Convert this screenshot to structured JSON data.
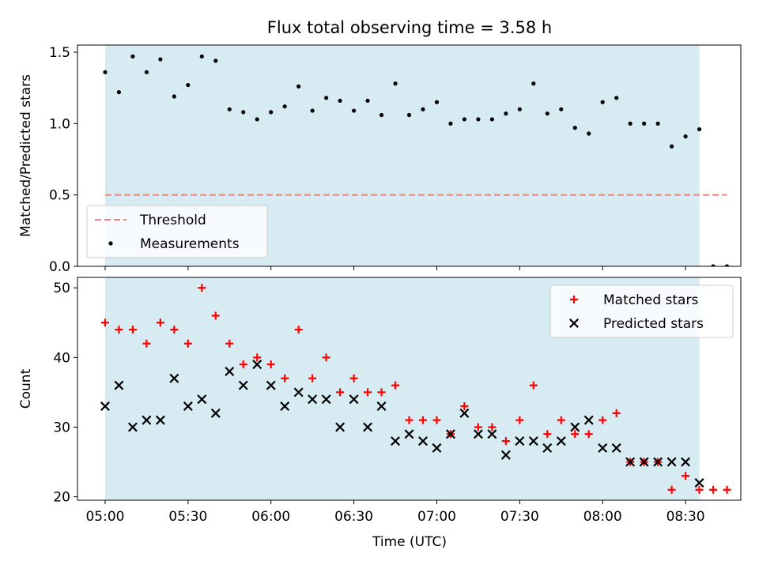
{
  "chart_data": {
    "title": "Flux total observing time = 3.58 h",
    "xlabel": "Time (UTC)",
    "x_ticks": [
      "05:00",
      "05:30",
      "06:00",
      "06:30",
      "07:00",
      "07:30",
      "08:00",
      "08:30"
    ],
    "colors": {
      "shade": "#add8e6",
      "threshold": "#f08080",
      "measurements": "#000000",
      "matched": "#ff0000",
      "predicted": "#000000"
    },
    "panels": [
      {
        "type": "scatter",
        "ylabel": "Matched/Predicted stars",
        "ylim": [
          0,
          1.55
        ],
        "y_ticks": [
          "0.0",
          "0.5",
          "1.0",
          "1.5"
        ],
        "y_tick_values": [
          0,
          0.5,
          1.0,
          1.5
        ],
        "legend": {
          "position": "lower-left",
          "entries": [
            "Threshold",
            "Measurements"
          ]
        },
        "shaded_span": {
          "start": "05:00",
          "end": "08:35"
        },
        "threshold": {
          "name": "Threshold",
          "y": 0.5,
          "x_start": "05:00",
          "x_end": "08:45"
        },
        "series": [
          {
            "name": "Measurements",
            "marker": "dot",
            "x": [
              "05:00",
              "05:05",
              "05:10",
              "05:15",
              "05:20",
              "05:25",
              "05:30",
              "05:35",
              "05:40",
              "05:45",
              "05:50",
              "05:55",
              "06:00",
              "06:05",
              "06:10",
              "06:15",
              "06:20",
              "06:25",
              "06:30",
              "06:35",
              "06:40",
              "06:45",
              "06:50",
              "06:55",
              "07:00",
              "07:05",
              "07:10",
              "07:15",
              "07:20",
              "07:25",
              "07:30",
              "07:35",
              "07:40",
              "07:45",
              "07:50",
              "07:55",
              "08:00",
              "08:05",
              "08:10",
              "08:15",
              "08:20",
              "08:25",
              "08:30",
              "08:35",
              "08:40",
              "08:45"
            ],
            "y": [
              1.36,
              1.22,
              1.47,
              1.36,
              1.45,
              1.19,
              1.27,
              1.47,
              1.44,
              1.1,
              1.08,
              1.03,
              1.08,
              1.12,
              1.26,
              1.09,
              1.18,
              1.16,
              1.09,
              1.16,
              1.06,
              1.28,
              1.06,
              1.1,
              1.15,
              1.0,
              1.03,
              1.03,
              1.03,
              1.07,
              1.1,
              1.28,
              1.07,
              1.1,
              0.97,
              0.93,
              1.15,
              1.18,
              1.0,
              1.0,
              1.0,
              0.84,
              0.91,
              0.96,
              0.0,
              0.0
            ]
          }
        ]
      },
      {
        "type": "scatter",
        "ylabel": "Count",
        "ylim": [
          19.5,
          51.5
        ],
        "y_ticks": [
          "20",
          "30",
          "40",
          "50"
        ],
        "y_tick_values": [
          20,
          30,
          40,
          50
        ],
        "legend": {
          "position": "top-right",
          "entries": [
            "Matched stars",
            "Predicted stars"
          ]
        },
        "shaded_span": {
          "start": "05:00",
          "end": "08:35"
        },
        "series": [
          {
            "name": "Matched stars",
            "marker": "plus",
            "x": [
              "05:00",
              "05:05",
              "05:10",
              "05:15",
              "05:20",
              "05:25",
              "05:30",
              "05:35",
              "05:40",
              "05:45",
              "05:50",
              "05:55",
              "06:00",
              "06:05",
              "06:10",
              "06:15",
              "06:20",
              "06:25",
              "06:30",
              "06:35",
              "06:40",
              "06:45",
              "06:50",
              "06:55",
              "07:00",
              "07:05",
              "07:10",
              "07:15",
              "07:20",
              "07:25",
              "07:30",
              "07:35",
              "07:40",
              "07:45",
              "07:50",
              "07:55",
              "08:00",
              "08:05",
              "08:10",
              "08:15",
              "08:20",
              "08:25",
              "08:30",
              "08:35",
              "08:40",
              "08:45"
            ],
            "y": [
              45,
              44,
              44,
              42,
              45,
              44,
              42,
              50,
              46,
              42,
              39,
              40,
              39,
              37,
              44,
              37,
              40,
              35,
              37,
              35,
              35,
              36,
              31,
              31,
              31,
              29,
              33,
              30,
              30,
              28,
              31,
              36,
              29,
              31,
              29,
              29,
              31,
              32,
              25,
              25,
              25,
              21,
              23,
              21,
              21,
              21
            ]
          },
          {
            "name": "Predicted stars",
            "marker": "x",
            "x": [
              "05:00",
              "05:05",
              "05:10",
              "05:15",
              "05:20",
              "05:25",
              "05:30",
              "05:35",
              "05:40",
              "05:45",
              "05:50",
              "05:55",
              "06:00",
              "06:05",
              "06:10",
              "06:15",
              "06:20",
              "06:25",
              "06:30",
              "06:35",
              "06:40",
              "06:45",
              "06:50",
              "06:55",
              "07:00",
              "07:05",
              "07:10",
              "07:15",
              "07:20",
              "07:25",
              "07:30",
              "07:35",
              "07:40",
              "07:45",
              "07:50",
              "07:55",
              "08:00",
              "08:05",
              "08:10",
              "08:15",
              "08:20",
              "08:25",
              "08:30",
              "08:35"
            ],
            "y": [
              33,
              36,
              30,
              31,
              31,
              37,
              33,
              34,
              32,
              38,
              36,
              39,
              36,
              33,
              35,
              34,
              34,
              30,
              34,
              30,
              33,
              28,
              29,
              28,
              27,
              29,
              32,
              29,
              29,
              26,
              28,
              28,
              27,
              28,
              30,
              31,
              27,
              27,
              25,
              25,
              25,
              25,
              25,
              22
            ]
          }
        ]
      }
    ]
  }
}
